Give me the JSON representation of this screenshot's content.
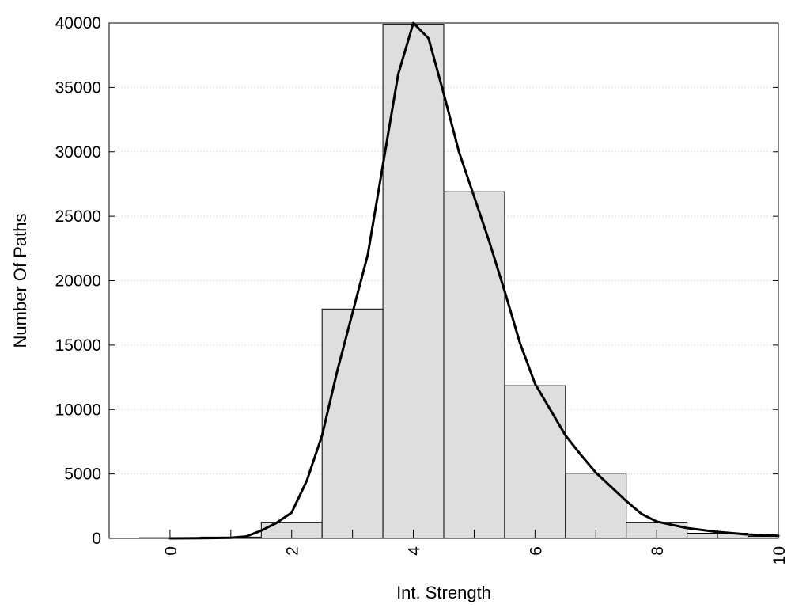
{
  "chart_data": {
    "type": "bar",
    "xlabel": "Int. Strength",
    "ylabel": "Number Of Paths",
    "xlim": [
      -1,
      10
    ],
    "ylim": [
      0,
      40000
    ],
    "xticks": [
      0,
      2,
      4,
      6,
      8,
      10
    ],
    "yticks": [
      0,
      5000,
      10000,
      15000,
      20000,
      25000,
      30000,
      35000,
      40000
    ],
    "grid": "horizontal dotted",
    "bar_color": "#dedede",
    "bins": [
      {
        "center": 0,
        "value": 50
      },
      {
        "center": 1,
        "value": 100
      },
      {
        "center": 2,
        "value": 1250
      },
      {
        "center": 3,
        "value": 17800
      },
      {
        "center": 4,
        "value": 39900
      },
      {
        "center": 5,
        "value": 26900
      },
      {
        "center": 6,
        "value": 11850
      },
      {
        "center": 7,
        "value": 5050
      },
      {
        "center": 8,
        "value": 1250
      },
      {
        "center": 9,
        "value": 400
      },
      {
        "center": 10,
        "value": 150
      }
    ],
    "curve": {
      "x": [
        0,
        0.5,
        1,
        1.25,
        1.5,
        1.75,
        2,
        2.25,
        2.5,
        2.75,
        3,
        3.25,
        3.5,
        3.75,
        4,
        4.25,
        4.5,
        4.75,
        5,
        5.25,
        5.5,
        5.75,
        6,
        6.25,
        6.5,
        6.75,
        7,
        7.25,
        7.5,
        7.75,
        8,
        8.5,
        9,
        9.5,
        10
      ],
      "y": [
        0,
        10,
        50,
        150,
        600,
        1200,
        2000,
        4500,
        8000,
        13000,
        17500,
        22000,
        29000,
        36000,
        40000,
        38800,
        34500,
        30000,
        26500,
        23000,
        19200,
        15200,
        12000,
        10000,
        8000,
        6500,
        5100,
        4000,
        2900,
        1900,
        1300,
        800,
        500,
        300,
        200
      ]
    }
  }
}
